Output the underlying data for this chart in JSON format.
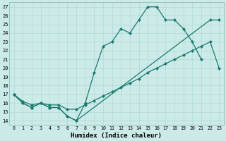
{
  "background_color": "#cceae7",
  "line_color": "#1a7a6e",
  "xlim": [
    -0.5,
    23.5
  ],
  "ylim": [
    13.5,
    27.5
  ],
  "xlabel": "Humidex (Indice chaleur)",
  "ytick_values": [
    14,
    15,
    16,
    17,
    18,
    19,
    20,
    21,
    22,
    23,
    24,
    25,
    26,
    27
  ],
  "marker_size": 2.2,
  "line_width": 0.9,
  "series1_x": [
    0,
    1,
    2,
    3,
    4,
    5,
    6,
    7,
    8,
    9,
    10,
    11,
    12,
    13,
    14,
    15,
    16,
    17,
    18,
    19,
    20,
    21
  ],
  "series1_y": [
    17,
    16,
    15.5,
    16,
    15.5,
    15.5,
    14.5,
    14,
    16,
    19.5,
    22.5,
    23,
    24.5,
    24,
    25.5,
    27,
    27,
    25.5,
    25.5,
    24.5,
    23,
    21
  ],
  "series2_x": [
    0,
    1,
    2,
    3,
    4,
    5,
    6,
    7,
    22,
    23
  ],
  "series2_y": [
    17,
    16,
    15.5,
    16,
    15.5,
    15.5,
    14.5,
    14,
    25.5,
    25.5
  ],
  "series3_x": [
    0,
    1,
    2,
    3,
    4,
    5,
    6,
    7,
    8,
    9,
    10,
    11,
    12,
    13,
    14,
    15,
    16,
    17,
    18,
    19,
    20,
    21,
    22,
    23
  ],
  "series3_y": [
    17,
    16.2,
    15.8,
    16,
    15.8,
    15.8,
    15.3,
    15.3,
    15.8,
    16.3,
    16.8,
    17.3,
    17.8,
    18.3,
    18.8,
    19.5,
    20,
    20.5,
    21,
    21.5,
    22,
    22.5,
    23,
    20
  ]
}
